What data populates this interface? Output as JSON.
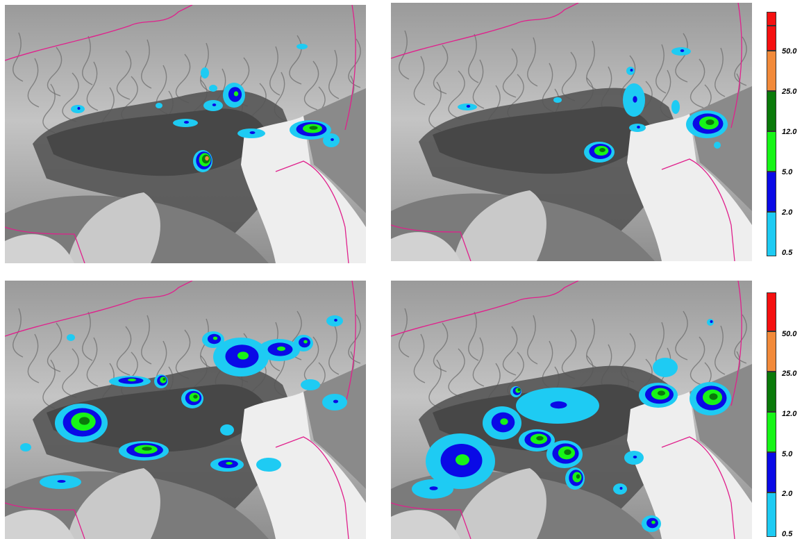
{
  "legends": [
    {
      "labels": [
        "0.5",
        "2.0",
        "5.0",
        "12.0",
        "25.0",
        "50.0"
      ]
    },
    {
      "labels": [
        "0.5",
        "2.0",
        "5.0",
        "12.0",
        "25.0",
        "50.0"
      ]
    }
  ],
  "colors": {
    "class_colors": [
      "#1ecbf3",
      "#0a0ae6",
      "#17f517",
      "#0a7a0a",
      "#f28a3a",
      "#f51010"
    ],
    "border_line": "#e0208c",
    "sea": "#eeeeee",
    "plain": "#555555",
    "mountains": "#b8b8b8"
  },
  "panels": [
    {
      "id": "top-left"
    },
    {
      "id": "top-right"
    },
    {
      "id": "bottom-left"
    },
    {
      "id": "bottom-right"
    }
  ]
}
